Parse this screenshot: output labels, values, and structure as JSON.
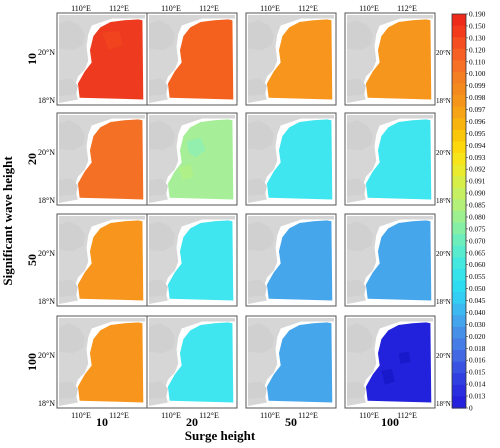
{
  "chart_data": {
    "type": "heatmap",
    "title": "",
    "xlabel": "Surge height",
    "ylabel": "Significant wave height",
    "col_labels": [
      "10",
      "20",
      "50",
      "100"
    ],
    "row_labels": [
      "10",
      "20",
      "50",
      "100"
    ],
    "lon_ticks": [
      "110°E",
      "112°E"
    ],
    "lat_ticks": [
      "20°N",
      "18°N"
    ],
    "colorbar": {
      "ticks": [
        "0.190",
        "0.150",
        "0.130",
        "0.120",
        "0.110",
        "0.100",
        "0.099",
        "0.098",
        "0.097",
        "0.096",
        "0.095",
        "0.094",
        "0.093",
        "0.092",
        "0.091",
        "0.090",
        "0.085",
        "0.080",
        "0.075",
        "0.070",
        "0.065",
        "0.060",
        "0.055",
        "0.050",
        "0.045",
        "0.040",
        "0.030",
        "0.020",
        "0.018",
        "0.016",
        "0.015",
        "0.014",
        "0.013",
        "0"
      ],
      "colors": [
        "#ee2a1a",
        "#f33a1c",
        "#f54e20",
        "#f66024",
        "#f67026",
        "#f47e22",
        "#f4891e",
        "#f5961b",
        "#f6a415",
        "#f8b40e",
        "#fbc70a",
        "#fcd80c",
        "#f7e41a",
        "#eaeb2e",
        "#d8ee48",
        "#c6f062",
        "#b2f07a",
        "#9cf090",
        "#86efa6",
        "#6eedbc",
        "#58ebce",
        "#44e8de",
        "#36e3ea",
        "#2edcf2",
        "#34cdf3",
        "#3cb9f0",
        "#44a4ec",
        "#4690e8",
        "#467ce6",
        "#4268e4",
        "#3a52e2",
        "#3040e0",
        "#2a2ede",
        "#2420dc"
      ]
    },
    "grid": [
      [
        {
          "value": 0.19,
          "color": "#ee3a1e"
        },
        {
          "value": 0.15,
          "color": "#f4611f"
        },
        {
          "value": 0.11,
          "color": "#f7951c"
        },
        {
          "value": 0.11,
          "color": "#f7961c"
        }
      ],
      [
        {
          "value": 0.15,
          "color": "#f47024"
        },
        {
          "value": 0.07,
          "color": "#a6ef98"
        },
        {
          "value": 0.05,
          "color": "#3fe6ef"
        },
        {
          "value": 0.05,
          "color": "#3fe6ef"
        }
      ],
      [
        {
          "value": 0.11,
          "color": "#f7951c"
        },
        {
          "value": 0.05,
          "color": "#3fe6ef"
        },
        {
          "value": 0.04,
          "color": "#46a6ec"
        },
        {
          "value": 0.04,
          "color": "#46a6ec"
        }
      ],
      [
        {
          "value": 0.11,
          "color": "#f7951c"
        },
        {
          "value": 0.05,
          "color": "#3fe6ef"
        },
        {
          "value": 0.04,
          "color": "#46a6ec"
        },
        {
          "value": 0.013,
          "color": "#2222dc"
        }
      ]
    ]
  }
}
